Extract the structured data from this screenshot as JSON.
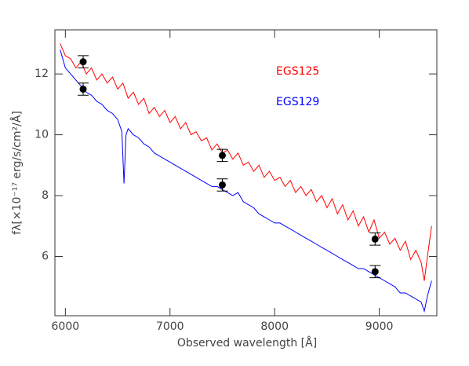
{
  "chart_data": {
    "type": "line",
    "xlabel": "Observed wavelength [Å]",
    "ylabel": "fλ[×10⁻¹⁷ erg/s/cm²/Å]",
    "xlim": [
      5900,
      9550
    ],
    "ylim": [
      4.05,
      13.45
    ],
    "xticks": [
      6000,
      7000,
      8000,
      9000
    ],
    "yticks": [
      6,
      8,
      10,
      12
    ],
    "series": [
      {
        "name": "EGS125",
        "color": "#ff0000",
        "x": [
          5950,
          6000,
          6050,
          6100,
          6150,
          6200,
          6250,
          6300,
          6350,
          6400,
          6450,
          6500,
          6550,
          6600,
          6650,
          6700,
          6750,
          6800,
          6850,
          6900,
          6950,
          7000,
          7050,
          7100,
          7150,
          7200,
          7250,
          7300,
          7350,
          7400,
          7450,
          7500,
          7550,
          7600,
          7650,
          7700,
          7750,
          7800,
          7850,
          7900,
          7950,
          8000,
          8050,
          8100,
          8150,
          8200,
          8250,
          8300,
          8350,
          8400,
          8450,
          8500,
          8550,
          8600,
          8650,
          8700,
          8750,
          8800,
          8850,
          8900,
          8950,
          9000,
          9050,
          9100,
          9150,
          9200,
          9250,
          9300,
          9350,
          9400,
          9430,
          9460,
          9500
        ],
        "values": [
          13.0,
          12.6,
          12.5,
          12.2,
          12.4,
          12.0,
          12.2,
          11.8,
          12.0,
          11.7,
          11.9,
          11.5,
          11.7,
          11.2,
          11.4,
          11.0,
          11.2,
          10.7,
          10.9,
          10.6,
          10.8,
          10.4,
          10.6,
          10.2,
          10.4,
          10.0,
          10.1,
          9.8,
          9.9,
          9.5,
          9.7,
          9.4,
          9.5,
          9.2,
          9.4,
          9.0,
          9.1,
          8.8,
          9.0,
          8.6,
          8.8,
          8.5,
          8.6,
          8.3,
          8.5,
          8.1,
          8.3,
          8.0,
          8.2,
          7.8,
          8.0,
          7.6,
          7.9,
          7.4,
          7.7,
          7.2,
          7.5,
          7.0,
          7.3,
          6.8,
          7.2,
          6.6,
          6.8,
          6.4,
          6.6,
          6.2,
          6.5,
          5.9,
          6.2,
          5.8,
          5.2,
          6.0,
          7.0
        ]
      },
      {
        "name": "EGS129",
        "color": "#0000ff",
        "x": [
          5950,
          6000,
          6050,
          6100,
          6150,
          6200,
          6250,
          6300,
          6350,
          6400,
          6450,
          6500,
          6540,
          6560,
          6580,
          6600,
          6650,
          6700,
          6750,
          6800,
          6850,
          6900,
          6950,
          7000,
          7050,
          7100,
          7150,
          7200,
          7250,
          7300,
          7350,
          7400,
          7450,
          7500,
          7550,
          7600,
          7650,
          7700,
          7750,
          7800,
          7850,
          7900,
          7950,
          8000,
          8050,
          8100,
          8150,
          8200,
          8250,
          8300,
          8350,
          8400,
          8450,
          8500,
          8550,
          8600,
          8650,
          8700,
          8750,
          8800,
          8850,
          8900,
          8950,
          9000,
          9050,
          9100,
          9150,
          9200,
          9250,
          9300,
          9350,
          9400,
          9430,
          9460,
          9500
        ],
        "values": [
          12.8,
          12.2,
          12.0,
          11.8,
          11.6,
          11.4,
          11.3,
          11.1,
          11.0,
          10.8,
          10.7,
          10.5,
          10.1,
          8.4,
          10.0,
          10.2,
          10.0,
          9.9,
          9.7,
          9.6,
          9.4,
          9.3,
          9.2,
          9.1,
          9.0,
          8.9,
          8.8,
          8.7,
          8.6,
          8.5,
          8.4,
          8.3,
          8.3,
          8.2,
          8.1,
          8.0,
          8.1,
          7.8,
          7.7,
          7.6,
          7.4,
          7.3,
          7.2,
          7.1,
          7.1,
          7.0,
          6.9,
          6.8,
          6.7,
          6.6,
          6.5,
          6.4,
          6.3,
          6.2,
          6.1,
          6.0,
          5.9,
          5.8,
          5.7,
          5.6,
          5.6,
          5.5,
          5.4,
          5.3,
          5.2,
          5.1,
          5.0,
          4.8,
          4.8,
          4.7,
          4.6,
          4.5,
          4.2,
          4.7,
          5.2
        ]
      }
    ],
    "points": [
      {
        "x": 6170,
        "y": 12.4,
        "error": 0.2
      },
      {
        "x": 6170,
        "y": 11.5,
        "error": 0.2
      },
      {
        "x": 7500,
        "y": 9.32,
        "error": 0.2
      },
      {
        "x": 7500,
        "y": 8.35,
        "error": 0.2
      },
      {
        "x": 8960,
        "y": 6.57,
        "error": 0.2
      },
      {
        "x": 8960,
        "y": 5.5,
        "error": 0.2
      }
    ]
  }
}
